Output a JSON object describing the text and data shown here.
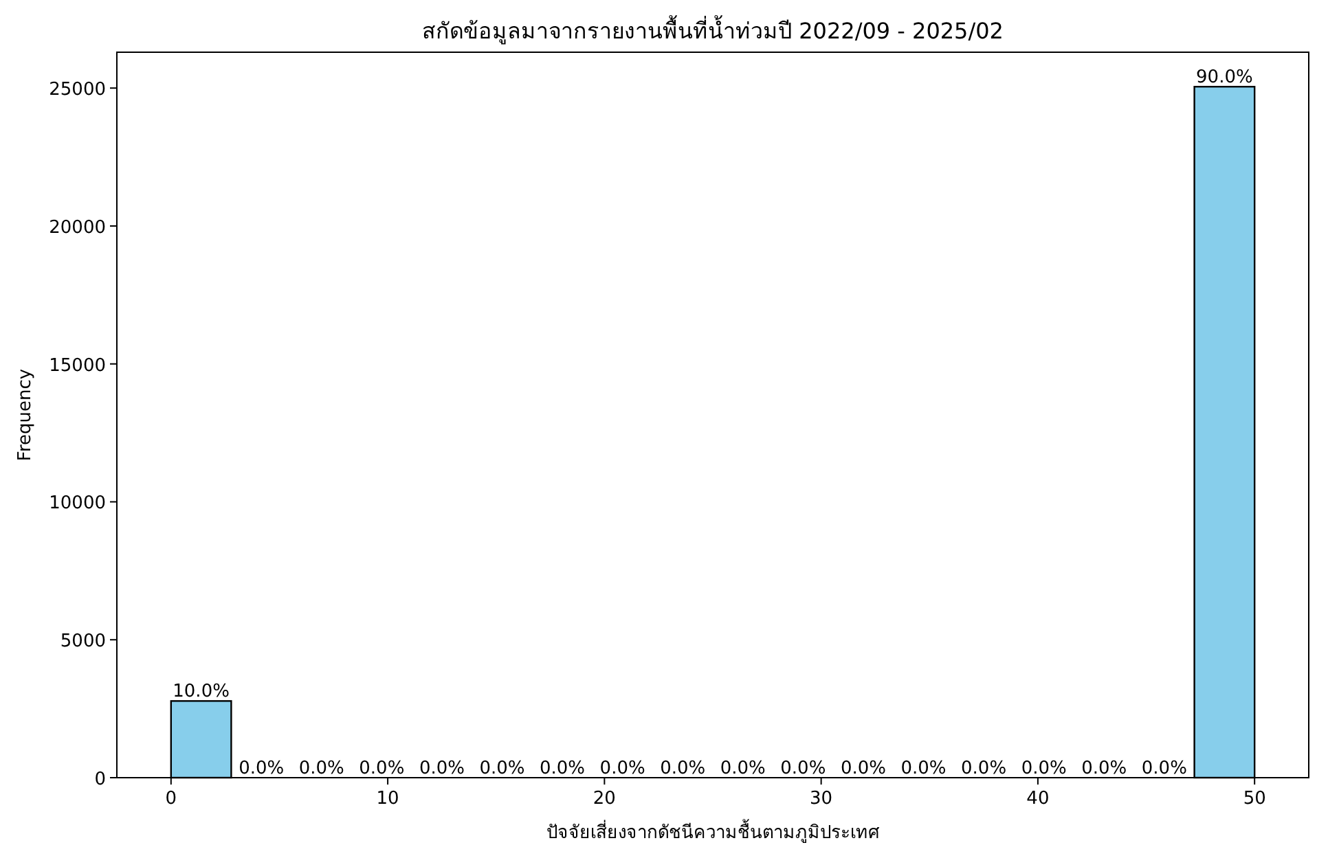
{
  "chart_data": {
    "type": "histogram",
    "title": "สกัดข้อมูลมาจากรายงานพื้นที่น้ำท่วมปี 2022/09 - 2025/02",
    "xlabel": "ปัจจัยเสี่ยงจากดัชนีความชื้นตามภูมิประเทศ",
    "ylabel": "Frequency",
    "bins": [
      0,
      2.7778,
      5.5556,
      8.3333,
      11.1111,
      13.8889,
      16.6667,
      19.4444,
      22.2222,
      25,
      27.7778,
      30.5556,
      33.3333,
      36.1111,
      38.8889,
      41.6667,
      44.4444,
      47.2222,
      50
    ],
    "values": [
      2780,
      0,
      0,
      0,
      0,
      0,
      0,
      0,
      0,
      0,
      0,
      0,
      0,
      0,
      0,
      0,
      0,
      25050
    ],
    "annotations": [
      {
        "text": "10.0%",
        "x": 1.3889,
        "y": 2780
      },
      {
        "text": "0.0%",
        "x": 4.1667,
        "y": 0
      },
      {
        "text": "0.0%",
        "x": 6.9444,
        "y": 0
      },
      {
        "text": "0.0%",
        "x": 9.7222,
        "y": 0
      },
      {
        "text": "0.0%",
        "x": 12.5,
        "y": 0
      },
      {
        "text": "0.0%",
        "x": 15.2778,
        "y": 0
      },
      {
        "text": "0.0%",
        "x": 18.0556,
        "y": 0
      },
      {
        "text": "0.0%",
        "x": 20.8333,
        "y": 0
      },
      {
        "text": "0.0%",
        "x": 23.6111,
        "y": 0
      },
      {
        "text": "0.0%",
        "x": 26.3889,
        "y": 0
      },
      {
        "text": "0.0%",
        "x": 29.1667,
        "y": 0
      },
      {
        "text": "0.0%",
        "x": 31.9444,
        "y": 0
      },
      {
        "text": "0.0%",
        "x": 34.7222,
        "y": 0
      },
      {
        "text": "0.0%",
        "x": 37.5,
        "y": 0
      },
      {
        "text": "0.0%",
        "x": 40.2778,
        "y": 0
      },
      {
        "text": "0.0%",
        "x": 43.0556,
        "y": 0
      },
      {
        "text": "0.0%",
        "x": 45.8333,
        "y": 0
      },
      {
        "text": "90.0%",
        "x": 48.6111,
        "y": 25050
      }
    ],
    "color": "#87ceeb",
    "xlim": [
      -2.5,
      52.5
    ],
    "xticks": [
      0,
      10,
      20,
      30,
      40,
      50
    ],
    "ylim": [
      0,
      26300
    ],
    "yticks": [
      0,
      5000,
      10000,
      15000,
      20000,
      25000
    ]
  }
}
